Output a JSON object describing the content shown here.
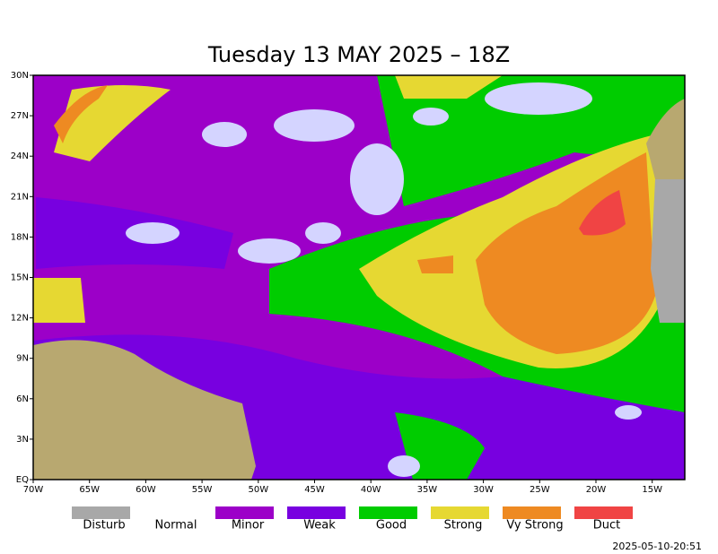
{
  "title": "Tuesday 13 MAY 2025 – 18Z",
  "lat_labels": [
    "30N",
    "27N",
    "24N",
    "21N",
    "18N",
    "15N",
    "12N",
    "9N",
    "6N",
    "3N",
    "EQ"
  ],
  "lon_labels": [
    "70W",
    "65W",
    "60W",
    "55W",
    "50W",
    "45W",
    "40W",
    "35W",
    "30W",
    "25W",
    "20W",
    "15W"
  ],
  "legend": [
    {
      "label": "Disturb",
      "color": "#a8a8a8"
    },
    {
      "label": "Normal",
      "color": "#ffffff"
    },
    {
      "label": "Minor",
      "color": "#9c00c8"
    },
    {
      "label": "Weak",
      "color": "#7800e0"
    },
    {
      "label": "Good",
      "color": "#00cc00"
    },
    {
      "label": "Strong",
      "color": "#e6d832"
    },
    {
      "label": "Vy Strong",
      "color": "#ee8a22"
    },
    {
      "label": "Duct",
      "color": "#f04444"
    }
  ],
  "timestamp": "2025-05-10-20:51"
}
